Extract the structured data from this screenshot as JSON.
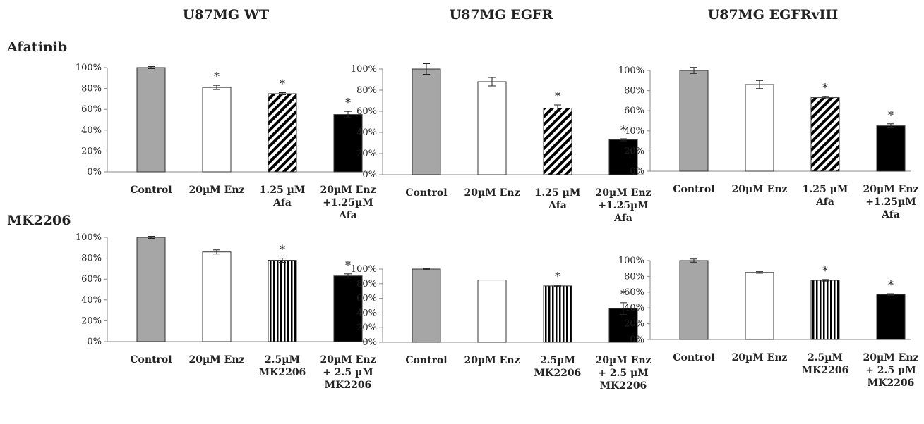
{
  "column_titles": [
    "U87MG WT",
    "U87MG EGFR",
    "U87MG EGFRvIII"
  ],
  "row_labels": [
    "Afatinib",
    "MK2206"
  ],
  "colors": {
    "control": "#a6a6a6",
    "enz": "#ffffff",
    "combo": "#000000",
    "stroke": "#333333"
  },
  "chart_data": [
    {
      "type": "bar",
      "row": "Afatinib",
      "column": "U87MG WT",
      "categories": [
        [
          "Control"
        ],
        [
          "20µM Enz"
        ],
        [
          "1.25 µM",
          "Afa"
        ],
        [
          "20µM Enz",
          "+1.25µM",
          "Afa"
        ]
      ],
      "fills": [
        "grey",
        "white",
        "diagonal-hatch",
        "black"
      ],
      "values": [
        100,
        81,
        75,
        55
      ],
      "errors": [
        1,
        2,
        1,
        3
      ],
      "significant": [
        false,
        true,
        true,
        true
      ],
      "yticks": [
        "0%",
        "20%",
        "40%",
        "60%",
        "80%",
        "100%"
      ],
      "ylim": [
        0,
        100
      ]
    },
    {
      "type": "bar",
      "row": "Afatinib",
      "column": "U87MG EGFR",
      "categories": [
        [
          "Control"
        ],
        [
          "20µM Enz"
        ],
        [
          "1.25 µM",
          "Afa"
        ],
        [
          "20µM Enz",
          "+1.25µM",
          "Afa"
        ]
      ],
      "fills": [
        "grey",
        "white",
        "diagonal-hatch",
        "black"
      ],
      "values": [
        100,
        88,
        63,
        33
      ],
      "errors": [
        5,
        4,
        3,
        1
      ],
      "significant": [
        false,
        false,
        true,
        true
      ],
      "yticks": [
        "0%",
        "20%",
        "40%",
        "60%",
        "80%",
        "100%"
      ],
      "ylim": [
        0,
        100
      ]
    },
    {
      "type": "bar",
      "row": "Afatinib",
      "column": "U87MG EGFRvIII",
      "categories": [
        [
          "Control"
        ],
        [
          "20µM Enz"
        ],
        [
          "1.25 µM",
          "Afa"
        ],
        [
          "20µM Enz",
          "+1.25µM",
          "Afa"
        ]
      ],
      "fills": [
        "grey",
        "white",
        "diagonal-hatch",
        "black"
      ],
      "values": [
        100,
        86,
        73,
        45
      ],
      "errors": [
        3,
        4,
        1,
        2
      ],
      "significant": [
        false,
        false,
        true,
        true
      ],
      "yticks": [
        "0%",
        "20%",
        "40%",
        "60%",
        "80%",
        "100%"
      ],
      "ylim": [
        0,
        100
      ]
    },
    {
      "type": "bar",
      "row": "MK2206",
      "column": "U87MG WT",
      "categories": [
        [
          "Control"
        ],
        [
          "20µM Enz"
        ],
        [
          "2.5µM",
          "MK2206"
        ],
        [
          "20µM Enz",
          "+ 2.5 µM",
          "MK2206"
        ]
      ],
      "fills": [
        "grey",
        "white",
        "vertical-stripe",
        "black"
      ],
      "values": [
        100,
        86,
        78,
        63
      ],
      "errors": [
        1,
        2,
        2,
        2
      ],
      "significant": [
        false,
        false,
        true,
        true
      ],
      "yticks": [
        "0%",
        "20%",
        "40%",
        "60%",
        "80%",
        "100%"
      ],
      "ylim": [
        0,
        100
      ]
    },
    {
      "type": "bar",
      "row": "MK2206",
      "column": "U87MG EGFR",
      "categories": [
        [
          "Control"
        ],
        [
          "20µM Enz"
        ],
        [
          "2.5µM",
          "MK2206"
        ],
        [
          "20µM Enz",
          "+ 2.5 µM",
          "MK2206"
        ]
      ],
      "fills": [
        "grey",
        "white",
        "vertical-stripe",
        "black"
      ],
      "values": [
        100,
        85,
        77,
        46
      ],
      "errors": [
        1,
        0,
        1,
        8
      ],
      "significant": [
        false,
        false,
        true,
        true
      ],
      "yticks": [
        "0%",
        "20%",
        "40%",
        "60%",
        "80%",
        "100%"
      ],
      "ylim": [
        0,
        100
      ]
    },
    {
      "type": "bar",
      "row": "MK2206",
      "column": "U87MG EGFRvIII",
      "categories": [
        [
          "Control"
        ],
        [
          "20µM Enz"
        ],
        [
          "2.5µM",
          "MK2206"
        ],
        [
          "20µM Enz",
          "+ 2.5 µM",
          "MK2206"
        ]
      ],
      "fills": [
        "grey",
        "white",
        "vertical-stripe",
        "black"
      ],
      "values": [
        100,
        85,
        75,
        57
      ],
      "errors": [
        2,
        1,
        1,
        1
      ],
      "significant": [
        false,
        false,
        true,
        true
      ],
      "yticks": [
        "0%",
        "20%",
        "40%",
        "60%",
        "80%",
        "100%"
      ],
      "ylim": [
        0,
        100
      ]
    }
  ]
}
